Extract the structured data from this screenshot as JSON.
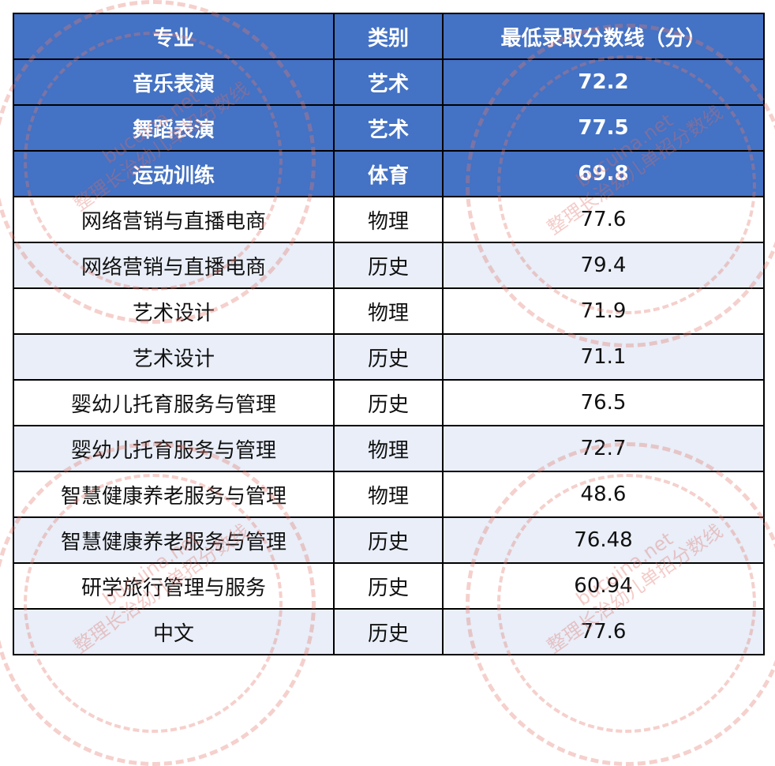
{
  "colors": {
    "header_bg": "#4472C4",
    "alt_row_bg": "#E9EEF8",
    "watermark": "#E0786E"
  },
  "table": {
    "headers": [
      "专业",
      "类别",
      "最低录取分数线（分）"
    ],
    "rows": [
      {
        "major": "音乐表演",
        "category": "艺术",
        "score": "72.2",
        "style": "blue"
      },
      {
        "major": "舞蹈表演",
        "category": "艺术",
        "score": "77.5",
        "style": "blue"
      },
      {
        "major": "运动训练",
        "category": "体育",
        "score": "69.8",
        "style": "blue"
      },
      {
        "major": "网络营销与直播电商",
        "category": "物理",
        "score": "77.6",
        "style": "plain"
      },
      {
        "major": "网络营销与直播电商",
        "category": "历史",
        "score": "79.4",
        "style": "alt"
      },
      {
        "major": "艺术设计",
        "category": "物理",
        "score": "71.9",
        "style": "plain"
      },
      {
        "major": "艺术设计",
        "category": "历史",
        "score": "71.1",
        "style": "alt"
      },
      {
        "major": "婴幼儿托育服务与管理",
        "category": "历史",
        "score": "76.5",
        "style": "plain"
      },
      {
        "major": "婴幼儿托育服务与管理",
        "category": "物理",
        "score": "72.7",
        "style": "alt"
      },
      {
        "major": "智慧健康养老服务与管理",
        "category": "物理",
        "score": "48.6",
        "style": "plain"
      },
      {
        "major": "智慧健康养老服务与管理",
        "category": "历史",
        "score": "76.48",
        "style": "alt"
      },
      {
        "major": "研学旅行管理与服务",
        "category": "历史",
        "score": "60.94",
        "style": "plain"
      },
      {
        "major": "中文",
        "category": "历史",
        "score": "77.6",
        "style": "alt"
      }
    ]
  },
  "watermark": {
    "site": "bucuina.net",
    "text": "整理长治幼儿单招分数线"
  }
}
